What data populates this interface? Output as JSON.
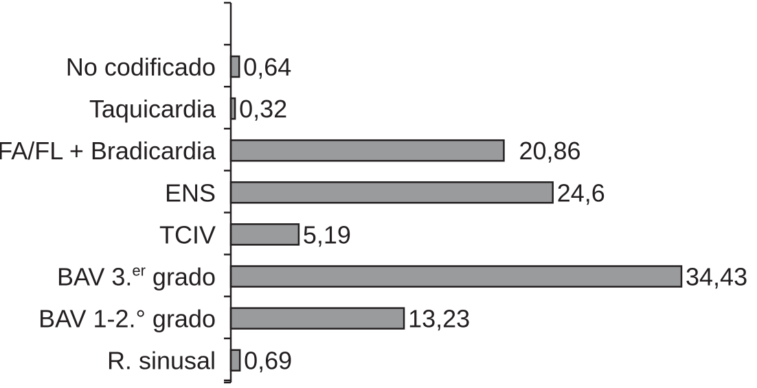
{
  "chart_data": {
    "type": "bar",
    "orientation": "horizontal",
    "title": "",
    "xlabel": "",
    "ylabel": "",
    "grid": false,
    "legend": "none",
    "xlim": [
      0,
      34.43
    ],
    "bar_color": "#9a9b9d",
    "bar_stroke": "#231f20",
    "axis_color": "#231f20",
    "categories": [
      {
        "label": "No codificado",
        "value": 0.64,
        "value_text": "0,64"
      },
      {
        "label": "Taquicardia",
        "value": 0.32,
        "value_text": "0,32"
      },
      {
        "label": "FA/FL + Bradicardia",
        "value": 20.86,
        "value_text": "20,86"
      },
      {
        "label": "ENS",
        "value": 24.6,
        "value_text": "24,6"
      },
      {
        "label": "TCIV",
        "value": 5.19,
        "value_text": "5,19"
      },
      {
        "label": "BAV 3.",
        "label_sup": "er",
        "label_tail": " grado",
        "value": 34.43,
        "value_text": "34,43"
      },
      {
        "label": "BAV 1-2.° grado",
        "value": 13.23,
        "value_text": "13,23"
      },
      {
        "label": "R. sinusal",
        "value": 0.69,
        "value_text": "0,69"
      }
    ]
  }
}
